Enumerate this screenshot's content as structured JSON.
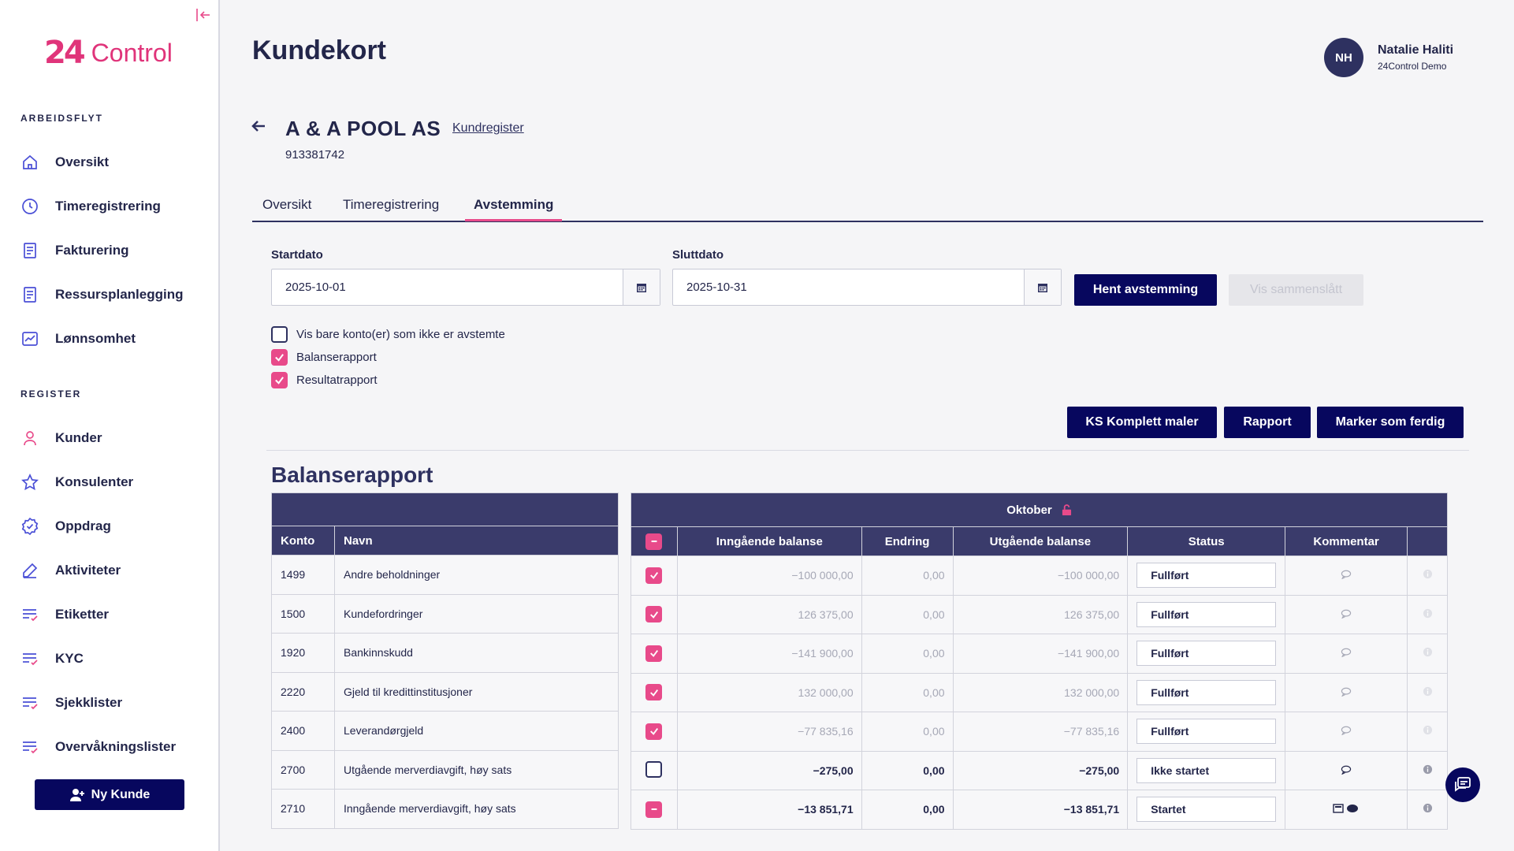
{
  "app": {
    "logo_mark": "24",
    "logo_text": "Control"
  },
  "sidebar": {
    "section_arbeidsflyt": "ARBEIDSFLYT",
    "section_register": "REGISTER",
    "arbeidsflyt": [
      {
        "label": "Oversikt",
        "icon": "home-icon"
      },
      {
        "label": "Timeregistrering",
        "icon": "clock-icon"
      },
      {
        "label": "Fakturering",
        "icon": "document-icon"
      },
      {
        "label": "Ressursplanlegging",
        "icon": "document-icon"
      },
      {
        "label": "Lønnsomhet",
        "icon": "chart-icon"
      }
    ],
    "register": [
      {
        "label": "Kunder",
        "icon": "user-icon"
      },
      {
        "label": "Konsulenter",
        "icon": "star-icon"
      },
      {
        "label": "Oppdrag",
        "icon": "badge-icon"
      },
      {
        "label": "Aktiviteter",
        "icon": "pencil-icon"
      },
      {
        "label": "Etiketter",
        "icon": "list-check-icon"
      },
      {
        "label": "KYC",
        "icon": "list-check-icon"
      },
      {
        "label": "Sjekklister",
        "icon": "list-check-icon"
      },
      {
        "label": "Overvåkningslister",
        "icon": "list-check-icon"
      }
    ],
    "ny_kunde": "Ny Kunde"
  },
  "header": {
    "title": "Kundekort"
  },
  "user": {
    "initials": "NH",
    "name": "Natalie Haliti",
    "org": "24Control Demo"
  },
  "customer": {
    "name": "A & A POOL AS",
    "link": "Kundregister",
    "org_no": "913381742"
  },
  "tabs": [
    "Oversikt",
    "Timeregistrering",
    "Avstemming"
  ],
  "active_tab": "Avstemming",
  "filters": {
    "start_label": "Startdato",
    "start_value": "2025-10-01",
    "end_label": "Sluttdato",
    "end_value": "2025-10-31",
    "fetch_button": "Hent avstemming",
    "merged_button": "Vis sammenslått",
    "checkboxes": [
      {
        "label": "Vis bare konto(er) som ikke er avstemte",
        "checked": false
      },
      {
        "label": "Balanserapport",
        "checked": true
      },
      {
        "label": "Resultatrapport",
        "checked": true
      }
    ]
  },
  "actions": {
    "ks": "KS Komplett maler",
    "report": "Rapport",
    "mark_done": "Marker som ferdig"
  },
  "balance": {
    "title": "Balanserapport",
    "period": "Oktober",
    "left_headers": [
      "Konto",
      "Navn"
    ],
    "right_headers": [
      "Inngående balanse",
      "Endring",
      "Utgående balanse",
      "Status",
      "Kommentar"
    ],
    "rows": [
      {
        "konto": "1499",
        "navn": "Andre beholdninger",
        "check": "on",
        "inn": "−100 000,00",
        "endring": "0,00",
        "ut": "−100 000,00",
        "status": "Fullført",
        "muted": true,
        "comment": "single"
      },
      {
        "konto": "1500",
        "navn": "Kundefordringer",
        "check": "on",
        "inn": "126 375,00",
        "endring": "0,00",
        "ut": "126 375,00",
        "status": "Fullført",
        "muted": true,
        "comment": "single"
      },
      {
        "konto": "1920",
        "navn": "Bankinnskudd",
        "check": "on",
        "inn": "−141 900,00",
        "endring": "0,00",
        "ut": "−141 900,00",
        "status": "Fullført",
        "muted": true,
        "comment": "single"
      },
      {
        "konto": "2220",
        "navn": "Gjeld til kredittinstitusjoner",
        "check": "on",
        "inn": "132 000,00",
        "endring": "0,00",
        "ut": "132 000,00",
        "status": "Fullført",
        "muted": true,
        "comment": "single"
      },
      {
        "konto": "2400",
        "navn": "Leverandørgjeld",
        "check": "on",
        "inn": "−77 835,16",
        "endring": "0,00",
        "ut": "−77 835,16",
        "status": "Fullført",
        "muted": true,
        "comment": "single"
      },
      {
        "konto": "2700",
        "navn": "Utgående merverdiavgift, høy sats",
        "check": "off",
        "inn": "−275,00",
        "endring": "0,00",
        "ut": "−275,00",
        "status": "Ikke startet",
        "muted": false,
        "comment": "single"
      },
      {
        "konto": "2710",
        "navn": "Inngående merverdiavgift, høy sats",
        "check": "partial",
        "inn": "−13 851,71",
        "endring": "0,00",
        "ut": "−13 851,71",
        "status": "Startet",
        "muted": false,
        "comment": "multi"
      }
    ]
  }
}
